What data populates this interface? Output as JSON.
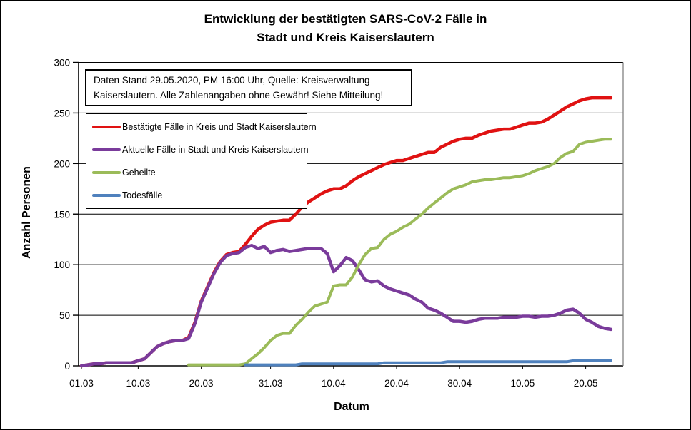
{
  "chart_data": {
    "type": "line",
    "title_line1": "Entwicklung der bestätigten SARS-CoV-2 Fälle in",
    "title_line2": "Stadt und Kreis Kaiserslautern",
    "xlabel": "Datum",
    "ylabel": "Anzahl Personen",
    "ylim": [
      0,
      300
    ],
    "y_ticks": [
      0,
      50,
      100,
      150,
      200,
      250,
      300
    ],
    "x_ticks": [
      {
        "label": "01.03",
        "day": 0
      },
      {
        "label": "10.03",
        "day": 9
      },
      {
        "label": "20.03",
        "day": 19
      },
      {
        "label": "31.03",
        "day": 30
      },
      {
        "label": "10.04",
        "day": 40
      },
      {
        "label": "20.04",
        "day": 50
      },
      {
        "label": "30.04",
        "day": 60
      },
      {
        "label": "10.05",
        "day": 70
      },
      {
        "label": "20.05",
        "day": 80
      }
    ],
    "grid": true,
    "legend_position": "upper-left-inside",
    "annotation": {
      "line1": "Daten Stand 29.05.2020, PM 16:00 Uhr, Quelle: Kreisverwaltung",
      "line2": "Kaiserslautern. Alle Zahlenangaben ohne Gewähr! Siehe Mitteilung!"
    },
    "series": [
      {
        "id": "bestaetigte",
        "name": "Bestätigte Fälle in Kreis und Stadt Kaiserslautern",
        "color": "#e01212",
        "width": 4.5,
        "values": [
          0,
          1,
          2,
          2,
          3,
          3,
          3,
          3,
          3,
          5,
          7,
          13,
          19,
          22,
          24,
          25,
          25,
          28,
          43,
          64,
          78,
          92,
          103,
          110,
          112,
          113,
          120,
          128,
          135,
          139,
          142,
          143,
          144,
          144,
          150,
          157,
          162,
          166,
          170,
          173,
          175,
          175,
          178,
          183,
          187,
          190,
          193,
          196,
          199,
          201,
          203,
          203,
          205,
          207,
          209,
          211,
          211,
          216,
          219,
          222,
          224,
          225,
          225,
          228,
          230,
          232,
          233,
          234,
          234,
          236,
          238,
          240,
          240,
          241,
          244,
          248,
          252,
          256,
          259,
          262,
          264,
          265,
          265,
          265,
          265
        ]
      },
      {
        "id": "aktuelle",
        "name": "Aktuelle Fälle in Stadt und Kreis Kaiserslautern",
        "color": "#7a3b9b",
        "width": 4.5,
        "values": [
          0,
          1,
          2,
          2,
          3,
          3,
          3,
          3,
          3,
          5,
          7,
          13,
          19,
          22,
          24,
          25,
          25,
          27,
          42,
          63,
          77,
          91,
          102,
          109,
          111,
          112,
          117,
          119,
          116,
          118,
          112,
          114,
          115,
          113,
          114,
          115,
          116,
          116,
          116,
          111,
          93,
          99,
          107,
          104,
          95,
          85,
          83,
          84,
          79,
          76,
          74,
          72,
          70,
          66,
          63,
          57,
          55,
          52,
          48,
          44,
          44,
          43,
          44,
          46,
          47,
          47,
          47,
          48,
          48,
          48,
          49,
          49,
          48,
          49,
          49,
          50,
          52,
          55,
          56,
          52,
          46,
          43,
          39,
          37,
          36
        ]
      },
      {
        "id": "geheilte",
        "name": "Geheilte",
        "color": "#9bbb59",
        "width": 4,
        "values": [
          null,
          null,
          null,
          null,
          null,
          null,
          null,
          null,
          null,
          null,
          null,
          null,
          null,
          null,
          null,
          null,
          null,
          1,
          1,
          1,
          1,
          1,
          1,
          1,
          1,
          1,
          2,
          7,
          12,
          18,
          25,
          30,
          32,
          32,
          40,
          46,
          53,
          59,
          61,
          63,
          79,
          80,
          80,
          88,
          100,
          110,
          116,
          117,
          125,
          130,
          133,
          137,
          140,
          145,
          150,
          156,
          161,
          166,
          171,
          175,
          177,
          179,
          182,
          183,
          184,
          184,
          185,
          186,
          186,
          187,
          188,
          190,
          193,
          195,
          197,
          200,
          206,
          210,
          212,
          219,
          221,
          222,
          223,
          224,
          224
        ]
      },
      {
        "id": "todesfaelle",
        "name": "Todesfälle",
        "color": "#4f81bd",
        "width": 4,
        "values": [
          null,
          null,
          null,
          null,
          null,
          null,
          null,
          null,
          null,
          null,
          null,
          null,
          null,
          null,
          null,
          null,
          null,
          null,
          null,
          null,
          null,
          null,
          null,
          null,
          null,
          null,
          1,
          1,
          1,
          1,
          1,
          1,
          1,
          1,
          1,
          2,
          2,
          2,
          2,
          2,
          2,
          2,
          2,
          2,
          2,
          2,
          2,
          2,
          3,
          3,
          3,
          3,
          3,
          3,
          3,
          3,
          3,
          3,
          4,
          4,
          4,
          4,
          4,
          4,
          4,
          4,
          4,
          4,
          4,
          4,
          4,
          4,
          4,
          4,
          4,
          4,
          4,
          4,
          5,
          5,
          5,
          5,
          5,
          5,
          5
        ]
      }
    ]
  }
}
